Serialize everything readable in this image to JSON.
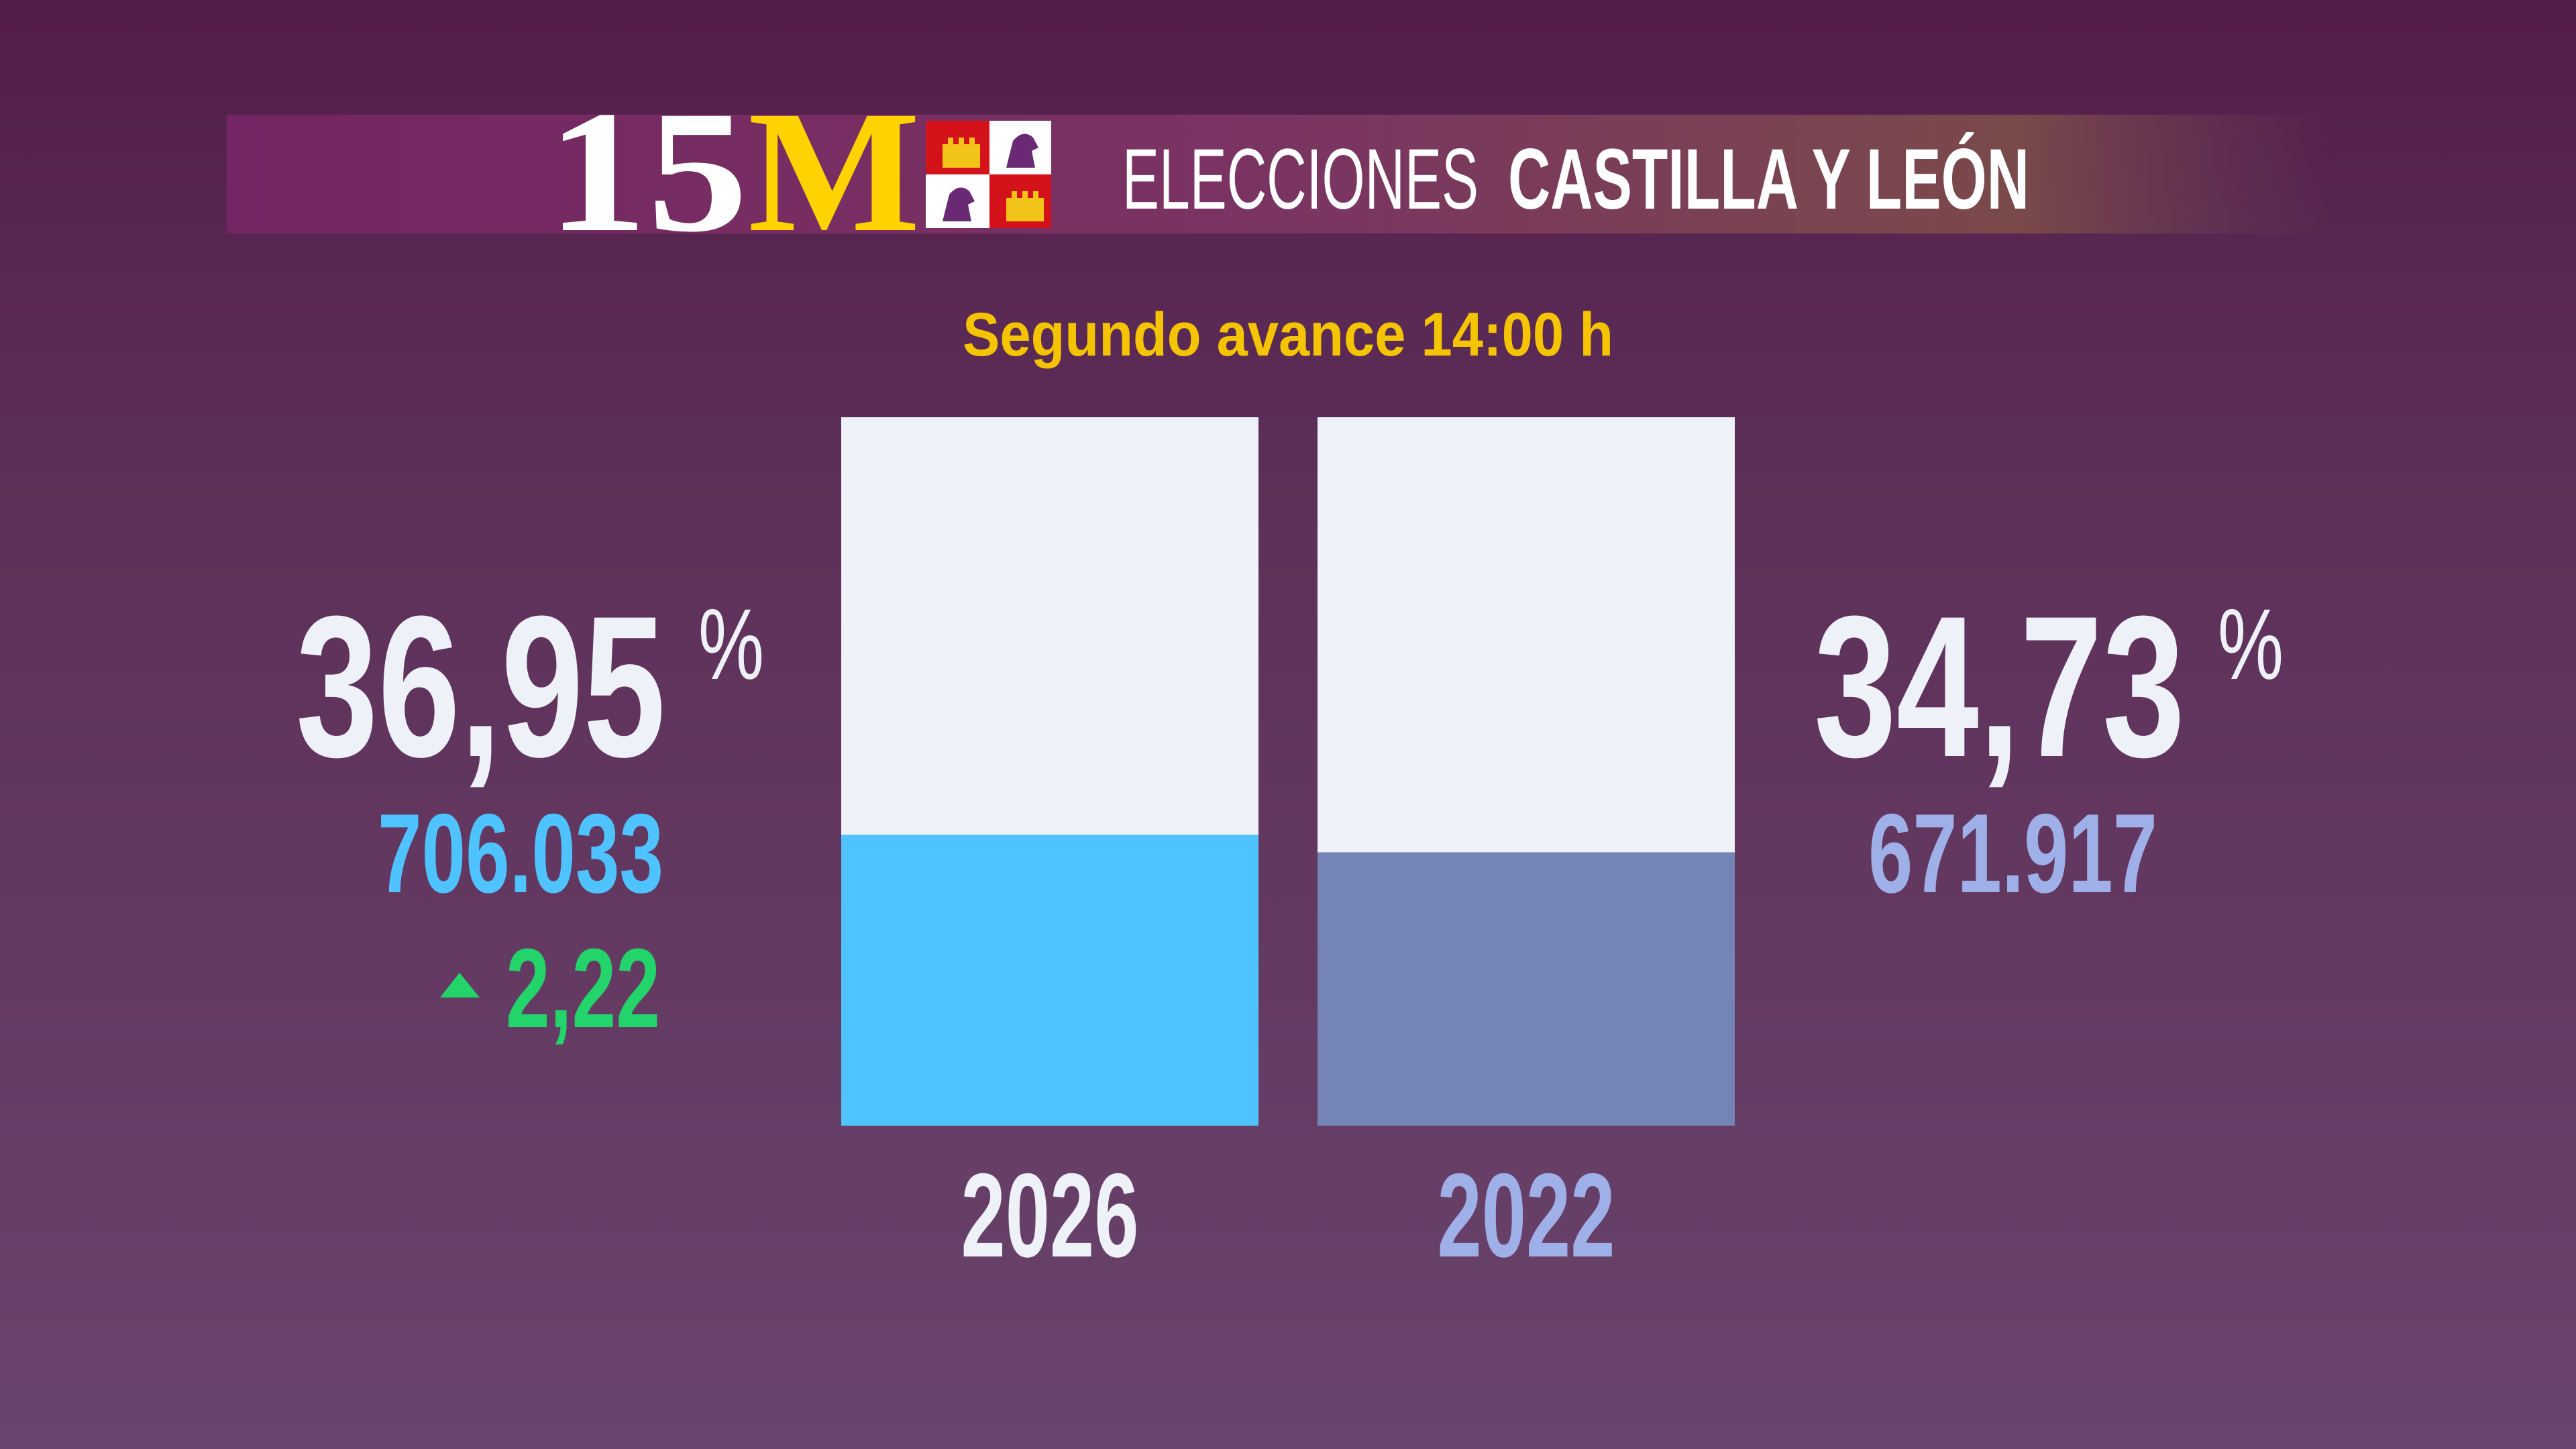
{
  "header": {
    "logo_number": "15",
    "logo_letter": "M",
    "title_light": "ELECCIONES",
    "title_bold": "CASTILLA Y LEÓN"
  },
  "chart_data": {
    "type": "bar",
    "title": "Segundo avance 14:00 h",
    "unit": "%",
    "categories": [
      "2026",
      "2022"
    ],
    "values": [
      36.95,
      34.73
    ],
    "value_labels": [
      "36,95",
      "34,73"
    ],
    "colors": [
      "#4fc3ff",
      "#7384b5"
    ],
    "votes": [
      706033,
      671917
    ],
    "votes_labels": [
      "706.033",
      "671.917"
    ],
    "change": 2.22,
    "change_label": "2,22",
    "ylim": [
      0,
      90
    ]
  }
}
